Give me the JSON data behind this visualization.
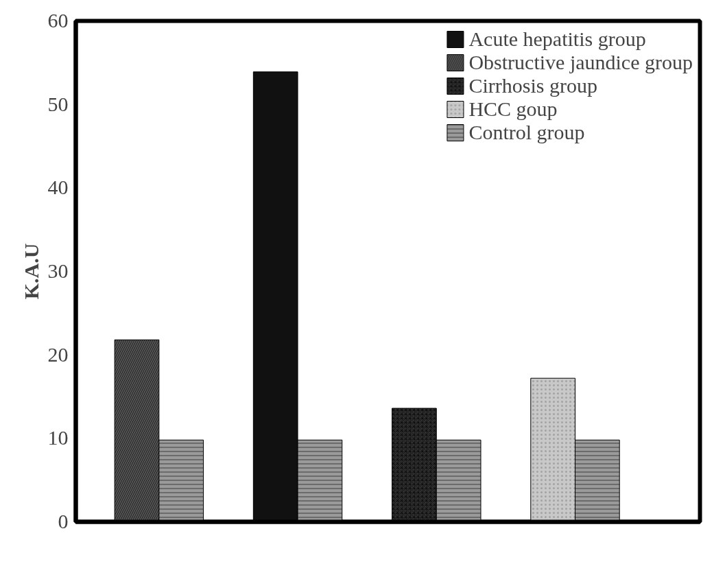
{
  "chart_data": {
    "type": "bar",
    "ylabel": "K.A.U",
    "categories": [
      null,
      null,
      null,
      null
    ],
    "series": [
      {
        "name": "Acute hepatitis group",
        "color": "#111111",
        "values": [
          null,
          53.9,
          null,
          null
        ]
      },
      {
        "name": "Obstructive jaundice group",
        "color": "#555555",
        "values": [
          21.8,
          null,
          null,
          null
        ]
      },
      {
        "name": "Cirrhosis group",
        "color": "#333333",
        "values": [
          null,
          null,
          13.6,
          null
        ]
      },
      {
        "name": "HCC goup",
        "color": "#c8c8c8",
        "values": [
          null,
          null,
          null,
          17.2
        ]
      },
      {
        "name": "Control group",
        "color": "#9a9a9a",
        "values": [
          9.8,
          9.8,
          9.8,
          9.8
        ]
      }
    ],
    "ylim": [
      0,
      60
    ],
    "yticks": [
      0,
      10,
      20,
      30,
      40,
      50,
      60
    ],
    "grid": false,
    "legend": "top right"
  }
}
